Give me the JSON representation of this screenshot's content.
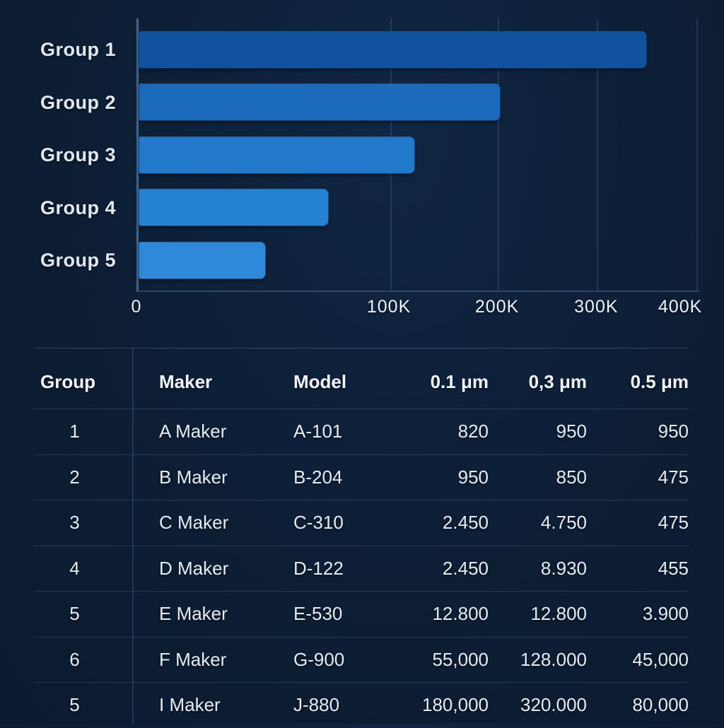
{
  "page": {
    "background": "#0d1e35"
  },
  "chart_data": {
    "type": "bar",
    "orientation": "horizontal",
    "title": "",
    "xlabel": "",
    "ylabel": "",
    "categories": [
      "Group 1",
      "Group 2",
      "Group 3",
      "Group 4",
      "Group 5"
    ],
    "values": [
      350000,
      205000,
      120000,
      75000,
      50000
    ],
    "xlim": [
      0,
      400000
    ],
    "grid": true,
    "legend": false,
    "axis_color": "#46648c",
    "x_ticks": [
      {
        "label": "0",
        "value": 0,
        "label_pct": 0,
        "line_pct": null
      },
      {
        "label": "100K",
        "value": 100000,
        "label_pct": 44.8,
        "line_pct": 44.8
      },
      {
        "label": "200K",
        "value": 200000,
        "label_pct": 64.0,
        "line_pct": 64.0
      },
      {
        "label": "300K",
        "value": 300000,
        "label_pct": 81.6,
        "line_pct": 81.6
      },
      {
        "label": "400K",
        "value": 400000,
        "label_pct": 96.5,
        "line_pct": 99.4
      }
    ],
    "bars": [
      {
        "category": "Group 1",
        "value": 350000,
        "width_pct": 90.6,
        "color": "#11529e"
      },
      {
        "category": "Group 2",
        "value": 205000,
        "width_pct": 64.5,
        "color": "#1b6abb"
      },
      {
        "category": "Group 3",
        "value": 120000,
        "width_pct": 49.2,
        "color": "#2278ca"
      },
      {
        "category": "Group 4",
        "value": 75000,
        "width_pct": 33.9,
        "color": "#2581d2"
      },
      {
        "category": "Group 5",
        "value": 50000,
        "width_pct": 22.7,
        "color": "#2f88d8"
      }
    ]
  },
  "table": {
    "columns": [
      {
        "key": "group",
        "label": "Group",
        "align": "center"
      },
      {
        "key": "maker",
        "label": "Maker",
        "align": "left"
      },
      {
        "key": "model",
        "label": "Model",
        "align": "left"
      },
      {
        "key": "um01",
        "label": "0.1 μm",
        "align": "right"
      },
      {
        "key": "um03",
        "label": "0,3 μm",
        "align": "right"
      },
      {
        "key": "um05",
        "label": "0.5 μm",
        "align": "right"
      }
    ],
    "rows": [
      [
        "1",
        "A Maker",
        "A-101",
        "820",
        "950",
        "950"
      ],
      [
        "2",
        "B Maker",
        "B-204",
        "950",
        "850",
        "475"
      ],
      [
        "3",
        "C Maker",
        "C-310",
        "2.450",
        "4.750",
        "475"
      ],
      [
        "4",
        "D Maker",
        "D-122",
        "2.450",
        "8.930",
        "455"
      ],
      [
        "5",
        "E Maker",
        "E-530",
        "12.800",
        "12.800",
        "3.900"
      ],
      [
        "6",
        "F Maker",
        "G-900",
        "55,000",
        "128.000",
        "45,000"
      ],
      [
        "5",
        "I Maker",
        "J-880",
        "180,000",
        "320.000",
        "80,000"
      ]
    ]
  }
}
